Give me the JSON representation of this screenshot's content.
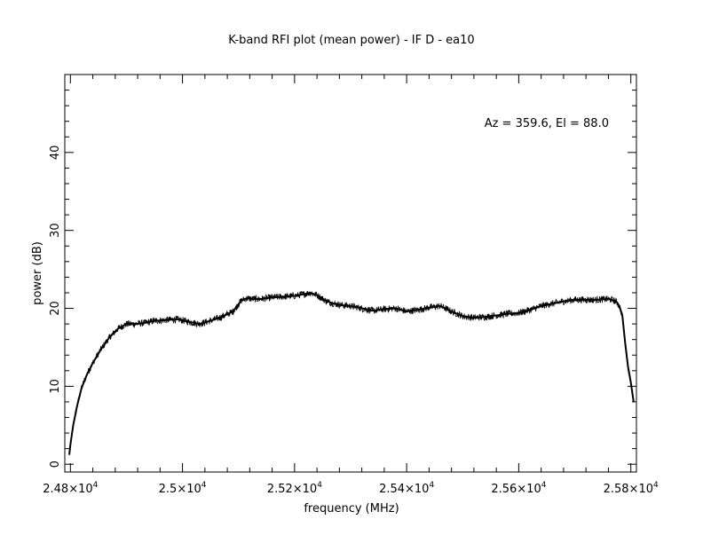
{
  "chart_data": {
    "type": "line",
    "title": "K-band RFI plot (mean power) - IF D - ea10",
    "xlabel": "frequency (MHz)",
    "ylabel": "power (dB)",
    "annotation": "Az = 359.6, El = 88.0",
    "xlim": [
      24790,
      25810
    ],
    "ylim": [
      -1,
      50
    ],
    "x_ticks": [
      {
        "value": 24800,
        "mantissa": "2.48",
        "exponent": "4"
      },
      {
        "value": 25000,
        "mantissa": "2.5",
        "exponent": "4"
      },
      {
        "value": 25200,
        "mantissa": "2.52",
        "exponent": "4"
      },
      {
        "value": 25400,
        "mantissa": "2.54",
        "exponent": "4"
      },
      {
        "value": 25600,
        "mantissa": "2.56",
        "exponent": "4"
      },
      {
        "value": 25800,
        "mantissa": "2.58",
        "exponent": "4"
      }
    ],
    "x_tick_multiplier": "×10",
    "y_ticks": [
      0,
      10,
      20,
      30,
      40
    ],
    "grid": false,
    "series": [
      {
        "color": "#000000",
        "x": [
          24798,
          24800,
          24805,
          24812,
          24820,
          24830,
          24840,
          24855,
          24870,
          24885,
          24900,
          24915,
          24930,
          24950,
          24970,
          24990,
          25010,
          25030,
          25050,
          25070,
          25090,
          25105,
          25115,
          25125,
          25140,
          25160,
          25180,
          25200,
          25215,
          25228,
          25240,
          25255,
          25270,
          25285,
          25300,
          25320,
          25340,
          25360,
          25380,
          25400,
          25420,
          25440,
          25460,
          25480,
          25500,
          25520,
          25540,
          25560,
          25580,
          25600,
          25620,
          25640,
          25660,
          25680,
          25700,
          25720,
          25740,
          25760,
          25770,
          25775,
          25780,
          25785,
          25790,
          25795,
          25800,
          25805
        ],
        "y": [
          1.2,
          2.5,
          5.0,
          7.5,
          9.8,
          11.6,
          13.0,
          14.8,
          16.3,
          17.4,
          18.0,
          18.0,
          18.1,
          18.4,
          18.5,
          18.6,
          18.3,
          18.0,
          18.4,
          18.9,
          19.6,
          21.0,
          21.3,
          21.2,
          21.2,
          21.4,
          21.5,
          21.6,
          21.8,
          22.0,
          21.7,
          21.0,
          20.6,
          20.4,
          20.3,
          20.0,
          19.7,
          19.9,
          20.0,
          19.6,
          19.8,
          20.1,
          20.3,
          19.6,
          19.0,
          18.8,
          18.9,
          19.1,
          19.3,
          19.4,
          19.8,
          20.3,
          20.6,
          20.9,
          21.1,
          21.1,
          21.1,
          21.2,
          21.0,
          20.8,
          20.2,
          19.0,
          15.5,
          12.5,
          10.5,
          8.0
        ]
      }
    ]
  }
}
